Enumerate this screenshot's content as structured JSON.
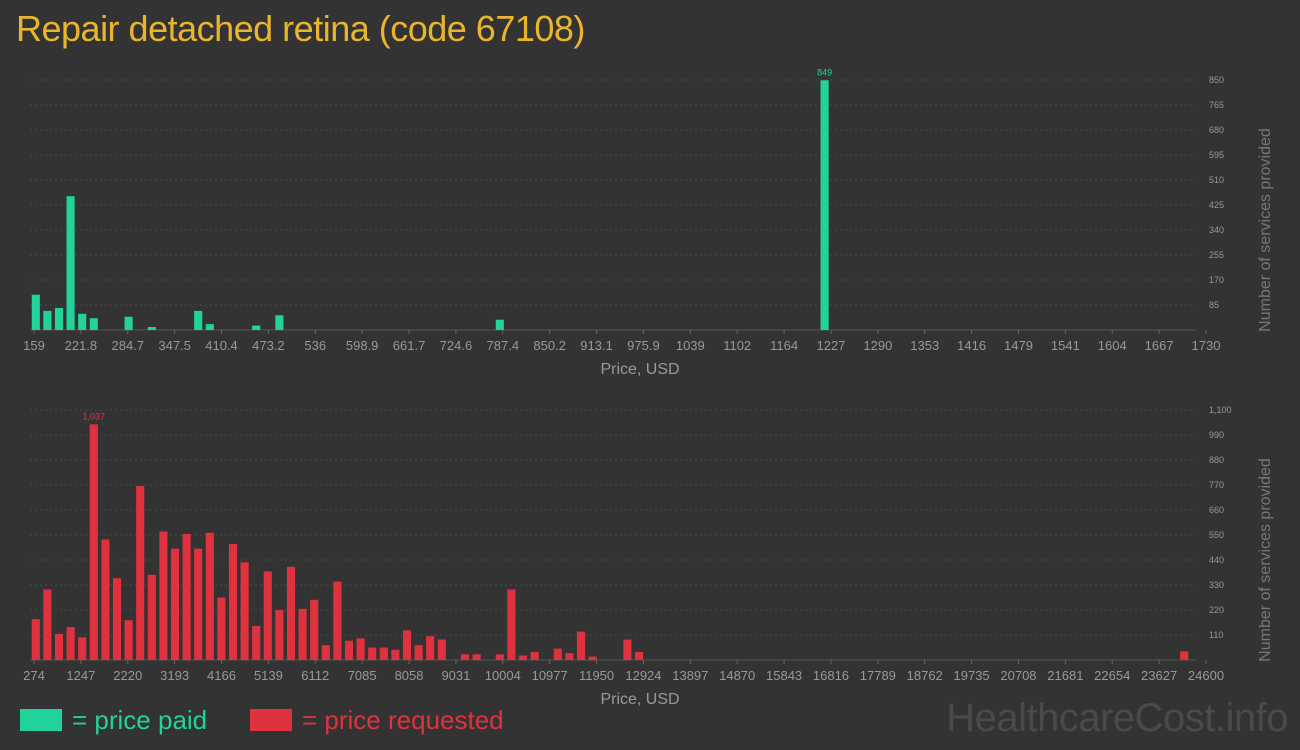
{
  "title": "Repair detached retina (code 67108)",
  "colors": {
    "background": "#333333",
    "title": "#e8b52c",
    "paid": "#21d39a",
    "requested": "#e0313f",
    "axis_text": "#999999",
    "grid": "#4a4a4a",
    "watermark": "#4a4a4a"
  },
  "legend": {
    "paid_label": "= price paid",
    "requested_label": "= price requested"
  },
  "watermark": "HealthcareCost.info",
  "chart_data": [
    {
      "type": "bar",
      "name": "price-paid",
      "xlabel": "Price, USD",
      "ylabel": "Number of services provided",
      "ylim": [
        0,
        850
      ],
      "yticks": [
        85,
        170,
        255,
        340,
        425,
        510,
        595,
        680,
        765,
        850
      ],
      "ytick_labels": [
        "85",
        "170",
        "255",
        "340",
        "425",
        "510",
        "595",
        "680",
        "765",
        "850"
      ],
      "xtick_labels": [
        "159",
        "221.8",
        "284.7",
        "347.5",
        "410.4",
        "473.2",
        "536",
        "598.9",
        "661.7",
        "724.6",
        "787.4",
        "850.2",
        "913.1",
        "975.9",
        "1039",
        "1102",
        "1164",
        "1227",
        "1290",
        "1353",
        "1416",
        "1479",
        "1541",
        "1604",
        "1667",
        "1730"
      ],
      "grid": true,
      "peak_label": "849",
      "peak_index": 68,
      "values": [
        120,
        65,
        75,
        455,
        55,
        40,
        0,
        0,
        45,
        0,
        10,
        0,
        0,
        0,
        65,
        20,
        0,
        0,
        0,
        15,
        0,
        50,
        0,
        0,
        0,
        0,
        0,
        0,
        0,
        0,
        0,
        0,
        0,
        0,
        0,
        0,
        0,
        0,
        0,
        0,
        35,
        0,
        0,
        0,
        0,
        0,
        0,
        0,
        0,
        0,
        0,
        0,
        0,
        0,
        0,
        0,
        0,
        0,
        0,
        0,
        0,
        0,
        0,
        0,
        0,
        0,
        0,
        0,
        849,
        0,
        0,
        0,
        0,
        0,
        0,
        0,
        0,
        0,
        0,
        0,
        0,
        0,
        0,
        0,
        0,
        0,
        0,
        0,
        0,
        0,
        0,
        0,
        0,
        0,
        0,
        0,
        0,
        0,
        0,
        0
      ]
    },
    {
      "type": "bar",
      "name": "price-requested",
      "xlabel": "Price, USD",
      "ylabel": "Number of services provided",
      "ylim": [
        0,
        1100
      ],
      "yticks": [
        110,
        220,
        330,
        440,
        550,
        660,
        770,
        880,
        990,
        1100
      ],
      "ytick_labels": [
        "110",
        "220",
        "330",
        "440",
        "550",
        "660",
        "770",
        "880",
        "990",
        "1,100"
      ],
      "xtick_labels": [
        "274",
        "1247",
        "2220",
        "3193",
        "4166",
        "5139",
        "6112",
        "7085",
        "8058",
        "9031",
        "10004",
        "10977",
        "11950",
        "12924",
        "13897",
        "14870",
        "15843",
        "16816",
        "17789",
        "18762",
        "19735",
        "20708",
        "21681",
        "22654",
        "23627",
        "24600"
      ],
      "grid": true,
      "peak_label": "1,037",
      "peak_index": 5,
      "values": [
        180,
        310,
        115,
        145,
        100,
        1037,
        530,
        360,
        175,
        765,
        375,
        565,
        490,
        555,
        490,
        560,
        275,
        510,
        430,
        150,
        390,
        220,
        410,
        225,
        265,
        65,
        345,
        85,
        95,
        55,
        55,
        45,
        130,
        65,
        105,
        90,
        0,
        25,
        25,
        0,
        25,
        310,
        20,
        35,
        0,
        50,
        30,
        125,
        15,
        0,
        0,
        90,
        35,
        0,
        0,
        0,
        0,
        0,
        0,
        0,
        0,
        0,
        0,
        0,
        0,
        0,
        0,
        0,
        0,
        0,
        0,
        0,
        0,
        0,
        0,
        0,
        0,
        0,
        0,
        0,
        0,
        0,
        0,
        0,
        0,
        0,
        0,
        0,
        0,
        0,
        0,
        0,
        0,
        0,
        0,
        0,
        0,
        0,
        0,
        38
      ]
    }
  ]
}
